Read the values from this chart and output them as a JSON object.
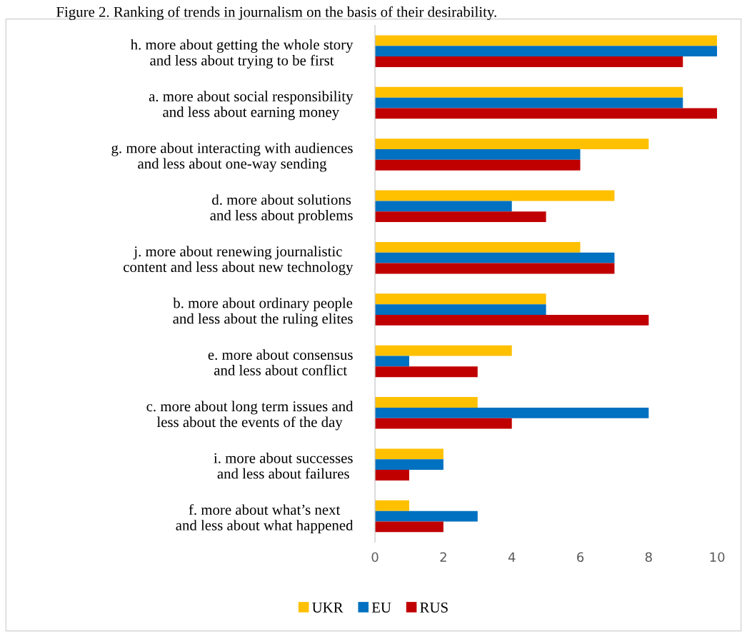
{
  "chart_data": {
    "type": "bar",
    "orientation": "horizontal",
    "title": "Figure 2. Ranking of trends in journalism on the basis of their desirability.",
    "categories": [
      "h. more about getting the whole story and less about trying to be first",
      "a. more about social responsibility and less about earning money",
      "g. more about interacting with audiences and less about one-way sending",
      "d. more about solutions and less about problems",
      "j. more about renewing journalistic content and less about new technology",
      "b. more about ordinary people and less about the ruling elites",
      "e. more about consensus and less about conflict",
      "c. more about long term issues and less about the events of the day",
      "i. more about successes and less about failures",
      "f. more about what’s next and less about what happened"
    ],
    "series": [
      {
        "name": "UKR",
        "color": "#ffc000",
        "values": [
          10,
          9,
          8,
          7,
          6,
          5,
          4,
          3,
          2,
          1
        ]
      },
      {
        "name": "EU",
        "color": "#0070c0",
        "values": [
          10,
          9,
          6,
          4,
          7,
          5,
          1,
          8,
          2,
          3
        ]
      },
      {
        "name": "RUS",
        "color": "#c00000",
        "values": [
          9,
          10,
          6,
          5,
          7,
          8,
          3,
          4,
          1,
          2
        ]
      }
    ],
    "xlim": [
      0,
      10
    ],
    "xticks": [
      0,
      2,
      4,
      6,
      8,
      10
    ],
    "grid": false,
    "legend": "bottom"
  }
}
